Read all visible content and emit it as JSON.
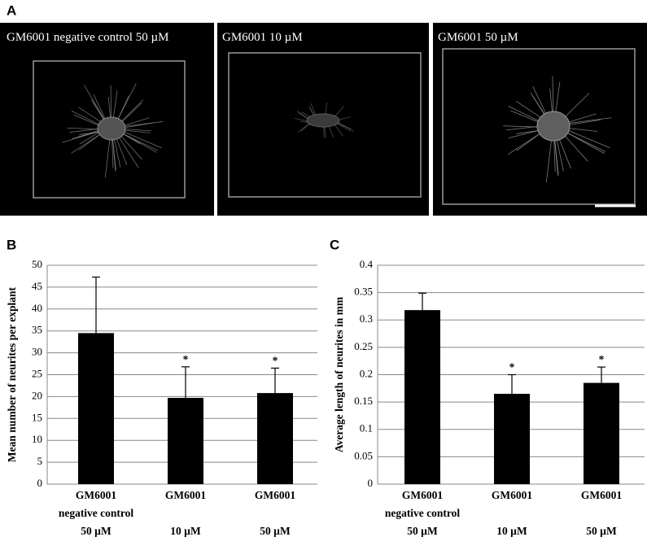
{
  "figure": {
    "panel_labels": [
      "A",
      "B",
      "C"
    ],
    "image_captions": [
      "GM6001 negative control 50 µM",
      "GM6001 10 µM",
      "GM6001 50 µM"
    ]
  },
  "chart_data": [
    {
      "type": "bar",
      "ylabel": "Mean number of neurites per explant",
      "categories": [
        [
          "GM6001",
          "negative control",
          "50 µM"
        ],
        [
          "GM6001",
          "10 µM"
        ],
        [
          "GM6001",
          "50 µM"
        ]
      ],
      "values": [
        34.5,
        19.7,
        20.8
      ],
      "errors": [
        12.8,
        7.1,
        5.7
      ],
      "annotations": [
        null,
        "*",
        "*"
      ],
      "color": "#000000",
      "ylim": [
        0,
        50
      ],
      "yticks": [
        0,
        5,
        10,
        15,
        20,
        25,
        30,
        35,
        40,
        45,
        50
      ],
      "grid": true
    },
    {
      "type": "bar",
      "ylabel": "Average length of neurites in mm",
      "categories": [
        [
          "GM6001",
          "negative control",
          "50 µM"
        ],
        [
          "GM6001",
          "10 µM"
        ],
        [
          "GM6001",
          "50 µM"
        ]
      ],
      "values": [
        0.318,
        0.165,
        0.185
      ],
      "errors": [
        0.031,
        0.035,
        0.029
      ],
      "annotations": [
        null,
        "*",
        "*"
      ],
      "color": "#000000",
      "ylim": [
        0,
        0.4
      ],
      "yticks": [
        0,
        0.05,
        0.1,
        0.15,
        0.2,
        0.25,
        0.3,
        0.35,
        0.4
      ],
      "grid": true
    }
  ]
}
